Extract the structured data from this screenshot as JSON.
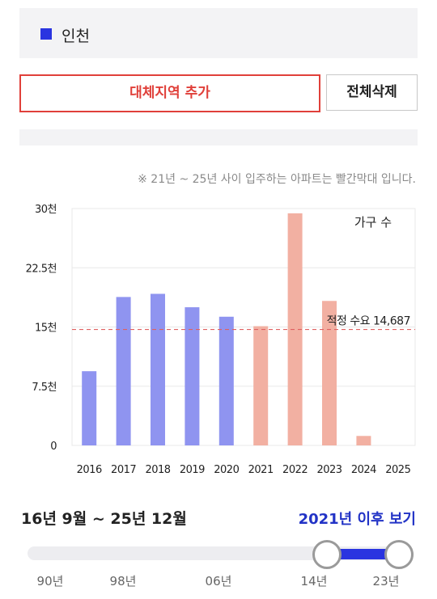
{
  "region": {
    "label": "인천",
    "color": "#2a34e0"
  },
  "buttons": {
    "add_region": "대체지역 추가",
    "delete_all": "전체삭제"
  },
  "notice": "※ 21년 ~ 25년 사이 입주하는 아파트는 빨간막대 입니다.",
  "chart_data": {
    "type": "bar",
    "legend_label": "가구 수",
    "categories": [
      "2016",
      "2017",
      "2018",
      "2019",
      "2020",
      "2021",
      "2022",
      "2023",
      "2024",
      "2025"
    ],
    "values": [
      9400,
      18800,
      19200,
      17500,
      16300,
      15100,
      29400,
      18300,
      1200,
      0
    ],
    "bar_colors": [
      "#8f94f0",
      "#8f94f0",
      "#8f94f0",
      "#8f94f0",
      "#8f94f0",
      "#f2b0a2",
      "#f2b0a2",
      "#f2b0a2",
      "#f2b0a2",
      "#f2b0a2"
    ],
    "ylim": [
      0,
      30000
    ],
    "yticks": [
      {
        "value": 0,
        "label": "0"
      },
      {
        "value": 7500,
        "label": "7.5천"
      },
      {
        "value": 15000,
        "label": "15천"
      },
      {
        "value": 22500,
        "label": "22.5천"
      },
      {
        "value": 30000,
        "label": "30천"
      }
    ],
    "reference_line": {
      "value": 14687,
      "label": "적정 수요 14,687",
      "color": "#e06060"
    },
    "grid": true
  },
  "range": {
    "label": "16년 9월 ~ 25년 12월",
    "view_after_label": "2021년 이후 보기",
    "slider_ticks": [
      "90년",
      "98년",
      "06년",
      "14년",
      "23년"
    ],
    "selected_fill_color": "#2a34e0"
  }
}
